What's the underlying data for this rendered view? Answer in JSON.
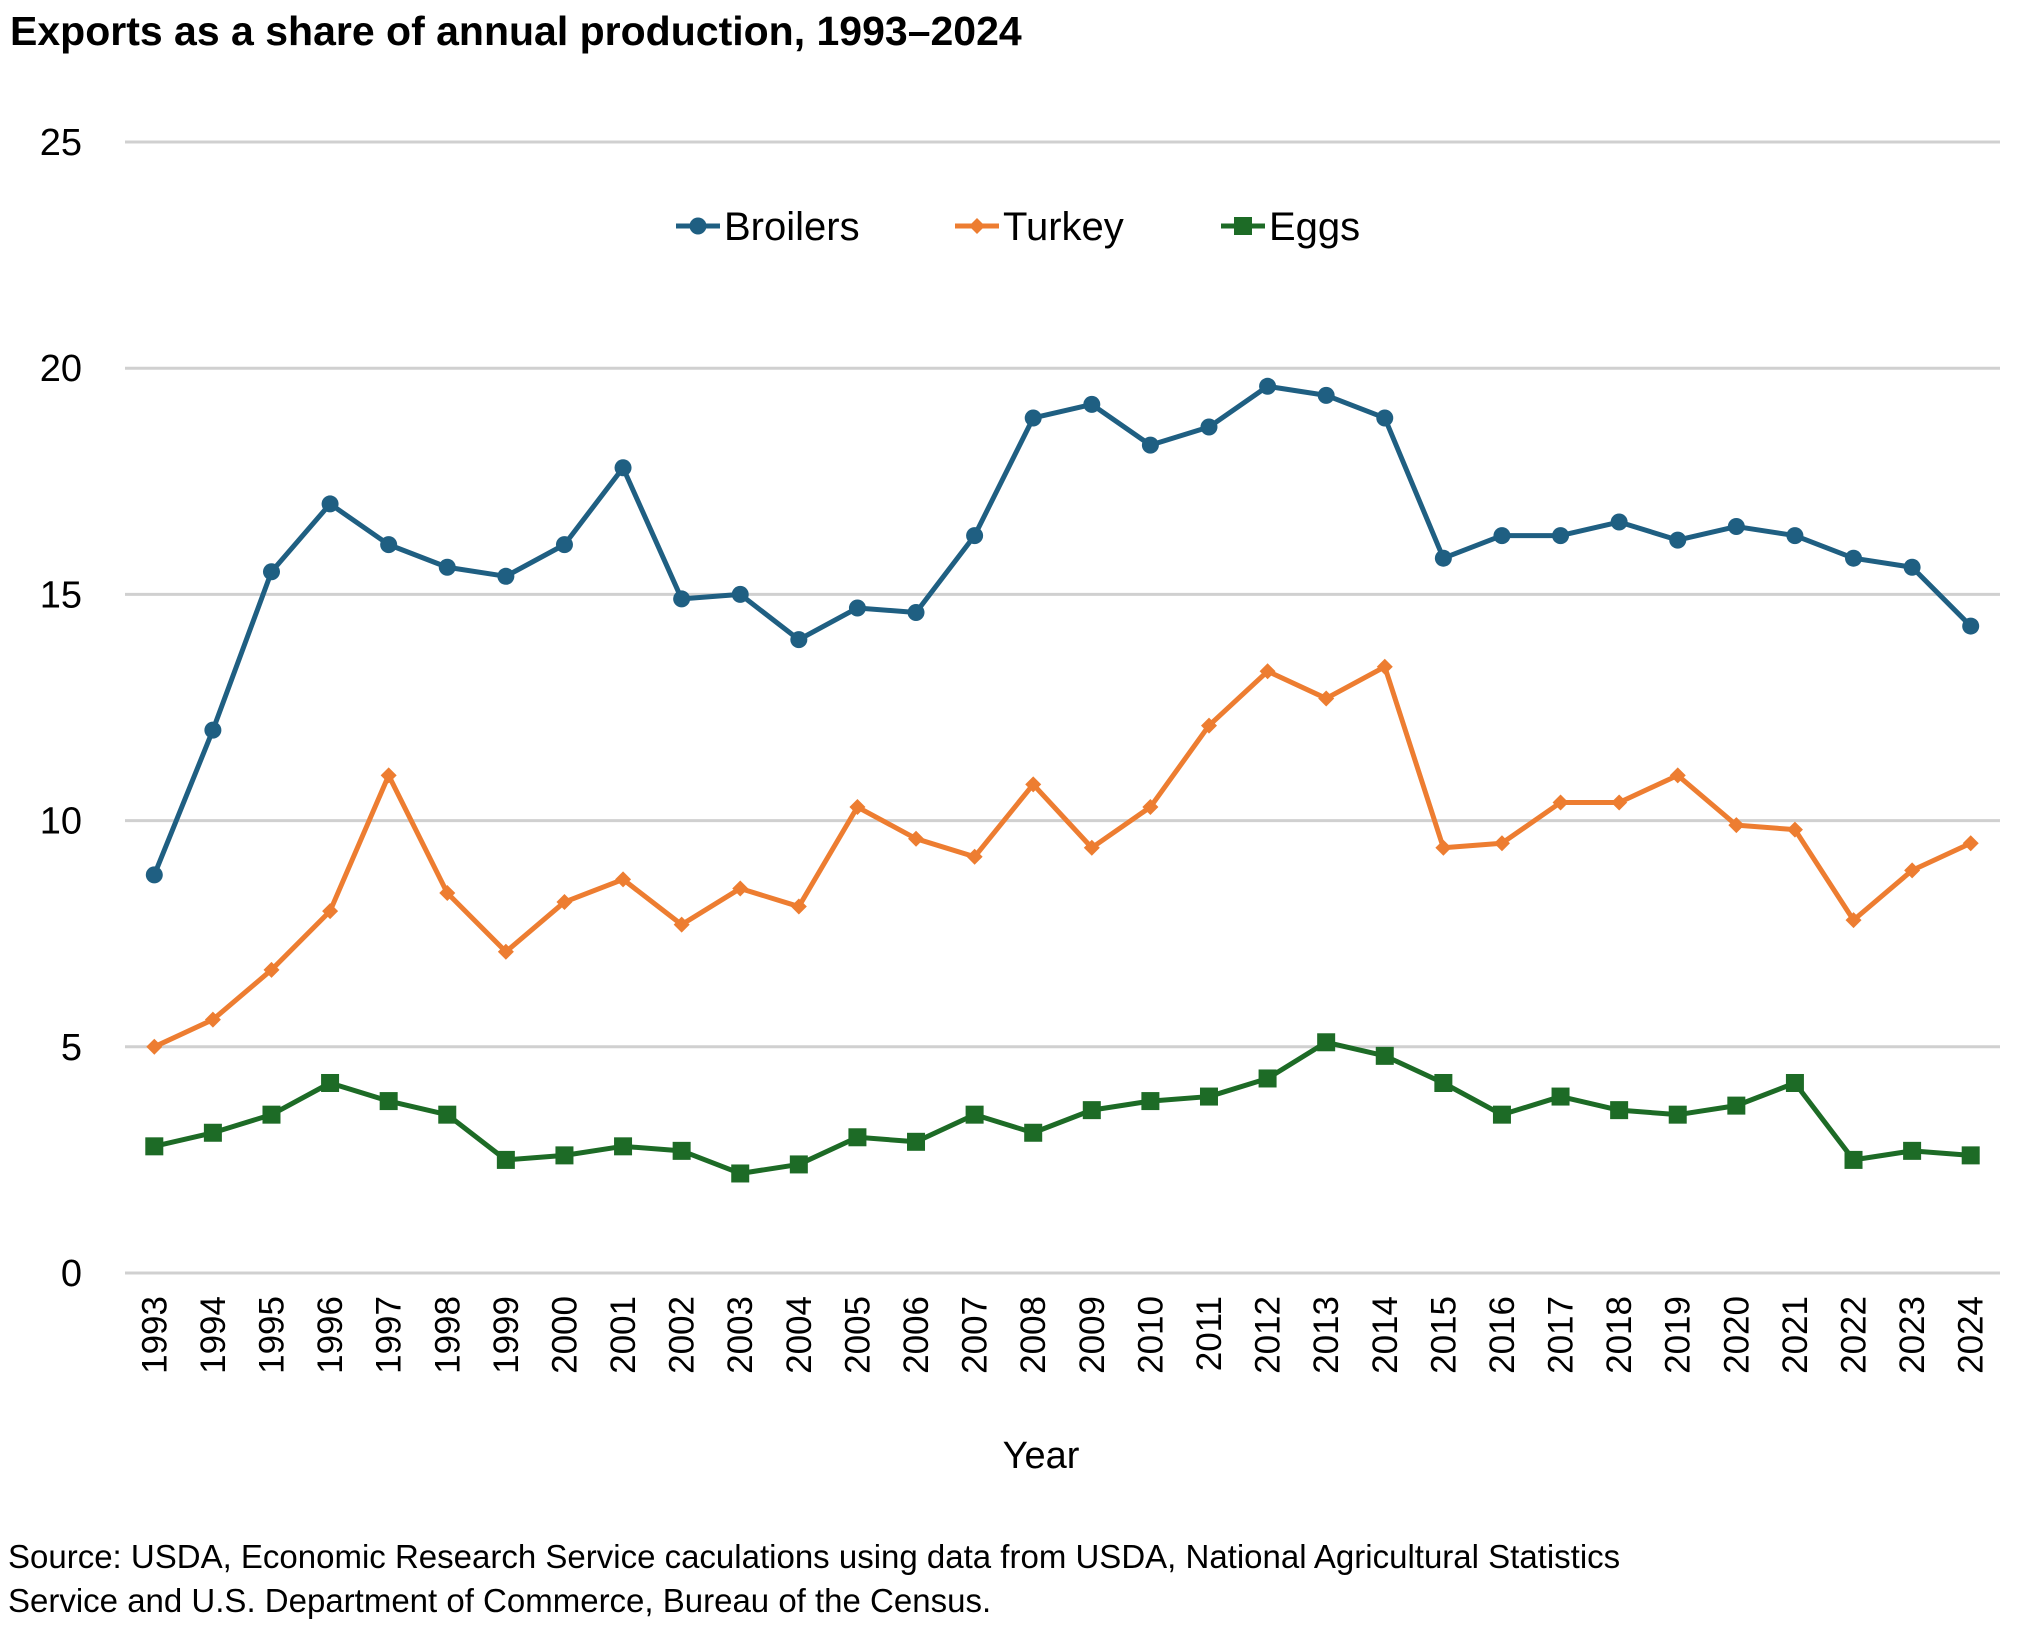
{
  "chart_data": {
    "type": "line",
    "title": "Exports as a share of annual production, 1993–2024",
    "xlabel": "Year",
    "ylabel": "",
    "ylim": [
      0,
      25
    ],
    "yticks": [
      0,
      5,
      10,
      15,
      20,
      25
    ],
    "grid": true,
    "legend_position": "top-center",
    "categories": [
      "1993",
      "1994",
      "1995",
      "1996",
      "1997",
      "1998",
      "1999",
      "2000",
      "2001",
      "2002",
      "2003",
      "2004",
      "2005",
      "2006",
      "2007",
      "2008",
      "2009",
      "2010",
      "2011",
      "2012",
      "2013",
      "2014",
      "2015",
      "2016",
      "2017",
      "2018",
      "2019",
      "2020",
      "2021",
      "2022",
      "2023",
      "2024"
    ],
    "series": [
      {
        "name": "Broilers",
        "color": "#1f5f82",
        "marker": "circle",
        "values": [
          8.8,
          12.0,
          15.5,
          17.0,
          16.1,
          15.6,
          15.4,
          16.1,
          17.8,
          14.9,
          15.0,
          14.0,
          14.7,
          14.6,
          16.3,
          18.9,
          19.2,
          18.3,
          18.7,
          19.6,
          19.4,
          18.9,
          15.8,
          16.3,
          16.3,
          16.6,
          16.2,
          16.5,
          16.3,
          15.8,
          15.6,
          14.3
        ]
      },
      {
        "name": "Turkey",
        "color": "#ed7d31",
        "marker": "diamond",
        "values": [
          5.0,
          5.6,
          6.7,
          8.0,
          11.0,
          8.4,
          7.1,
          8.2,
          8.7,
          7.7,
          8.5,
          8.1,
          10.3,
          9.6,
          9.2,
          10.8,
          9.4,
          10.3,
          12.1,
          13.3,
          12.7,
          13.4,
          9.4,
          9.5,
          10.4,
          10.4,
          11.0,
          9.9,
          9.8,
          7.8,
          8.9,
          9.5
        ]
      },
      {
        "name": "Eggs",
        "color": "#1d6b26",
        "marker": "square",
        "values": [
          2.8,
          3.1,
          3.5,
          4.2,
          3.8,
          3.5,
          2.5,
          2.6,
          2.8,
          2.7,
          2.2,
          2.4,
          3.0,
          2.9,
          3.5,
          3.1,
          3.6,
          3.8,
          3.9,
          4.3,
          5.1,
          4.8,
          4.2,
          3.5,
          3.9,
          3.6,
          3.5,
          3.7,
          4.2,
          2.5,
          2.7,
          2.6
        ]
      }
    ],
    "source_note_lines": [
      "Source: USDA, Economic Research Service caculations using data from USDA, National Agricultural Statistics",
      "Service and U.S. Department of Commerce, Bureau of the Census."
    ]
  }
}
